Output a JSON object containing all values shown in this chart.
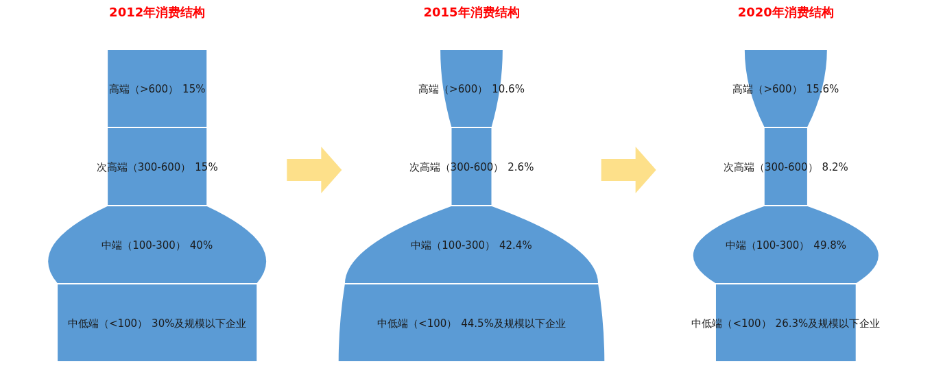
{
  "chart_data": [
    {
      "type": "other",
      "title": "2012年消费结构",
      "categories": [
        "高端（>600）",
        "次高端（300-600）",
        "中端（100-300）",
        "中低端（<100）"
      ],
      "values": [
        15,
        15,
        40,
        30
      ],
      "value_labels": [
        "15%",
        "15%",
        "40%",
        "30%"
      ],
      "annotations": [
        {
          "text": "及规模以下企业",
          "x": "中低端（<100）"
        }
      ],
      "color": "#5b9bd5"
    },
    {
      "type": "other",
      "title": "2015年消费结构",
      "categories": [
        "高端（>600）",
        "次高端（300-600）",
        "中端（100-300）",
        "中低端（<100）"
      ],
      "values": [
        10.6,
        2.6,
        42.4,
        44.5
      ],
      "value_labels": [
        "10.6%",
        "2.6%",
        "42.4%",
        "44.5%"
      ],
      "annotations": [
        {
          "text": "及规模以下企业",
          "x": "中低端（<100）"
        }
      ],
      "color": "#5b9bd5"
    },
    {
      "type": "other",
      "title": "2020年消费结构",
      "categories": [
        "高端（>600）",
        "次高端（300-600）",
        "中端（100-300）",
        "中低端（<100）"
      ],
      "values": [
        15.6,
        8.2,
        49.8,
        26.3
      ],
      "value_labels": [
        "15.6%",
        "8.2%",
        "49.8%",
        "26.3%"
      ],
      "annotations": [
        {
          "text": "及规模以下企业",
          "x": "中低端（<100）"
        }
      ],
      "color": "#5b9bd5"
    }
  ]
}
